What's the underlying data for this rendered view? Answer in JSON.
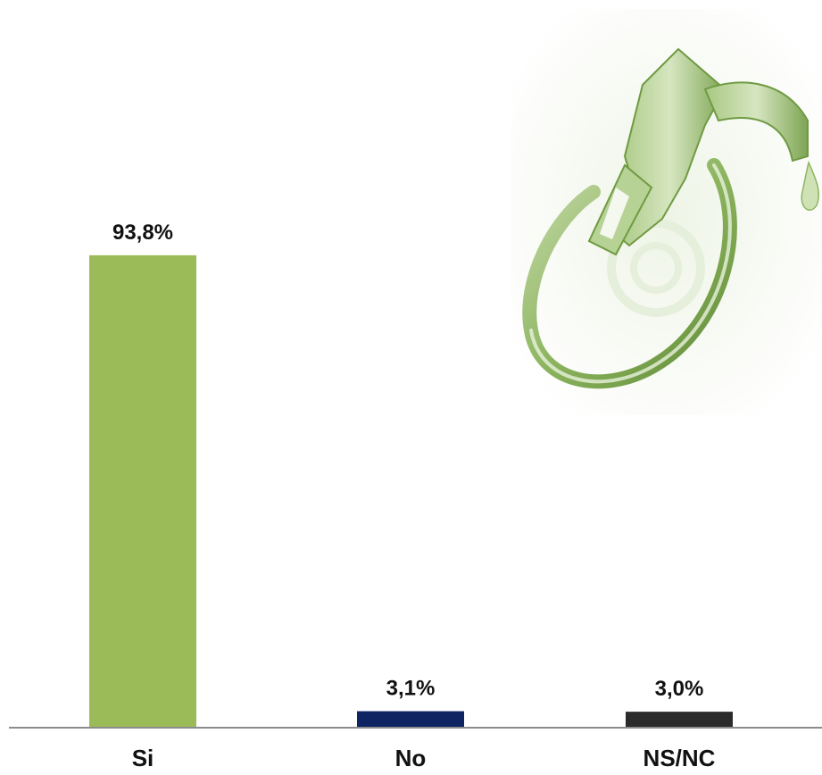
{
  "chart_data": {
    "type": "bar",
    "categories": [
      "Si",
      "No",
      "NS/NC"
    ],
    "values": [
      93.8,
      3.1,
      3.0
    ],
    "value_labels": [
      "93,8%",
      "3,1%",
      "3,0%"
    ],
    "bar_colors": [
      "#9BBB59",
      "#0E2463",
      "#2B2B2B"
    ],
    "ylim": [
      0,
      100
    ],
    "grid": false,
    "legend": "none"
  },
  "decoration": {
    "illustration": "fuel-pump-nozzle-icon",
    "colors": {
      "nozzle_green": "#8DB560",
      "nozzle_light": "#D8E8C4",
      "axis": "#8C8C8C"
    }
  }
}
